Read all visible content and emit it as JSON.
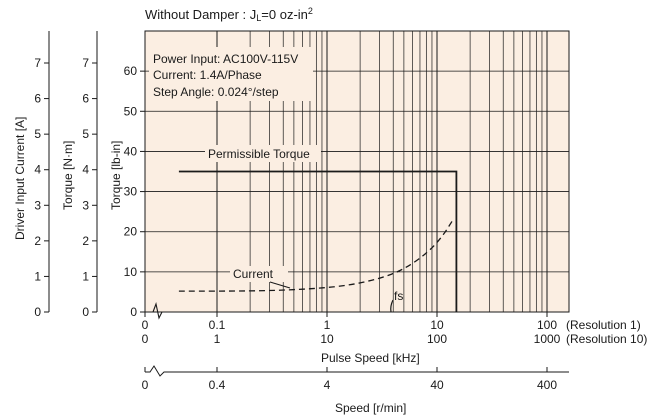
{
  "chart_data": {
    "type": "line",
    "title": "Without Damper : J",
    "title_subscript": "L",
    "title_rest": "=0 oz-in",
    "title_superscript": "2",
    "background_color": "#fbeee2",
    "grid": true,
    "annotations": {
      "power_input": "Power Input: AC100V-115V",
      "current": "Current: 1.4A/Phase",
      "step_angle": "Step Angle: 0.024°/step",
      "fs": "fs"
    },
    "axes": {
      "y_torque_lbin": {
        "label": "Torque [lb-in]",
        "ticks": [
          "0",
          "10",
          "20",
          "30",
          "40",
          "50",
          "60"
        ],
        "ylim": [
          0,
          70
        ]
      },
      "y_torque_nm": {
        "label": "Torque [N·m]",
        "ticks": [
          "0",
          "1",
          "2",
          "3",
          "4",
          "5",
          "6",
          "7"
        ],
        "ylim": [
          0,
          7.9
        ]
      },
      "y_current": {
        "label": "Driver Input Current [A]",
        "ticks": [
          "0",
          "1",
          "2",
          "3",
          "4",
          "5",
          "6",
          "7"
        ],
        "ylim": [
          0,
          7.9
        ]
      },
      "x_pulse_res1": {
        "ticks": [
          "0",
          "0.1",
          "1",
          "10",
          "100"
        ],
        "suffix": "(Resolution 1)",
        "scale": "log"
      },
      "x_pulse_res10": {
        "ticks": [
          "0",
          "1",
          "10",
          "100",
          "1000"
        ],
        "suffix": "(Resolution 10)"
      },
      "x_pulse_label": "Pulse Speed [kHz]",
      "x_speed": {
        "label": "Speed [r/min]",
        "ticks": [
          "0",
          "0.4",
          "4",
          "40",
          "400"
        ]
      }
    },
    "series": [
      {
        "name": "Permissible Torque",
        "x_khz_res1": [
          0.045,
          15,
          15
        ],
        "y_lbin": [
          35,
          35,
          0
        ]
      },
      {
        "name": "Current",
        "x_khz_res1": [
          0.045,
          0.2,
          0.6,
          1.5,
          3,
          5,
          8,
          11,
          14
        ],
        "y_lbin": [
          5.2,
          5.2,
          5.6,
          6.5,
          8.3,
          10.6,
          14.5,
          18.5,
          23
        ]
      }
    ]
  }
}
